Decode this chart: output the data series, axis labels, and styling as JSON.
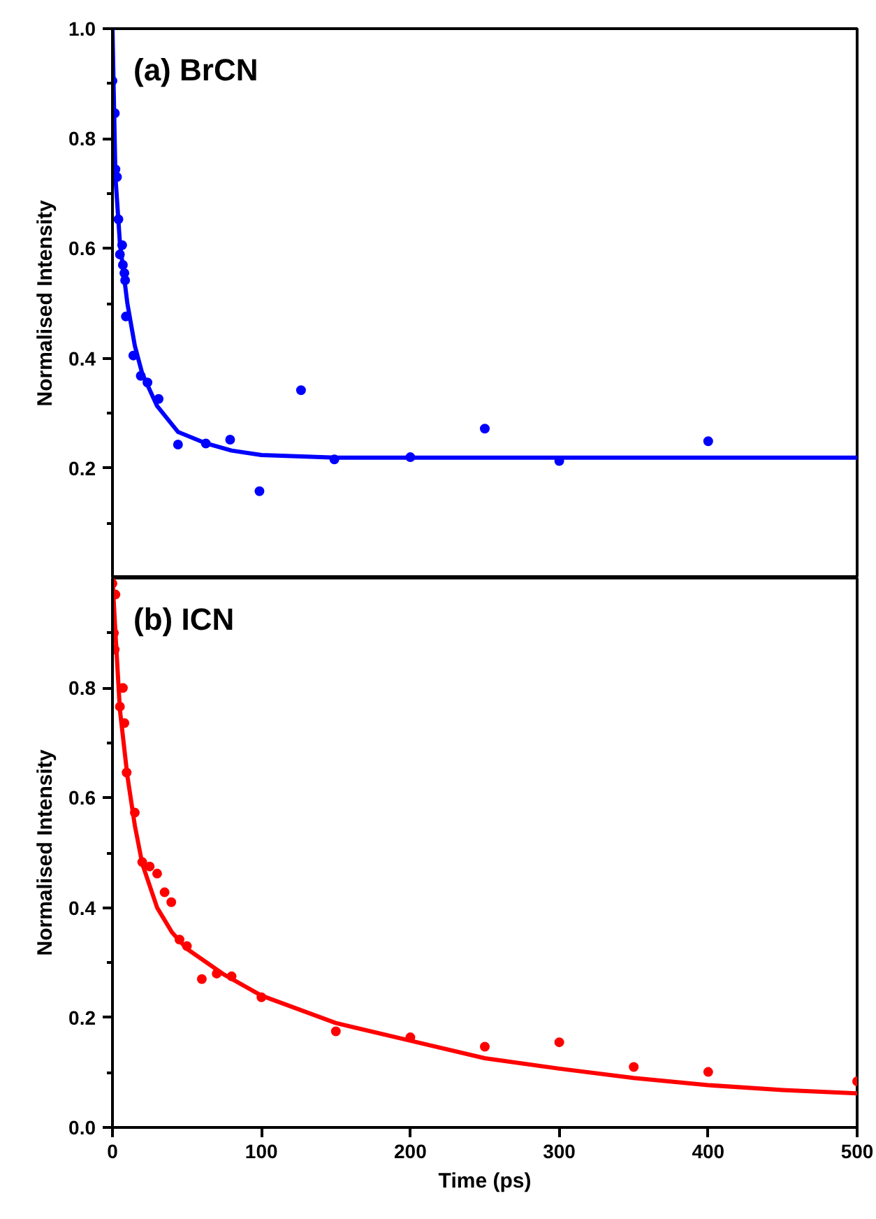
{
  "chart_data": [
    {
      "type": "scatter",
      "title": "(a) BrCN",
      "ylabel": "Normalised Intensity",
      "xlim": [
        0,
        500
      ],
      "ylim": [
        0,
        1.0
      ],
      "xticks": [
        0,
        100,
        200,
        300,
        400,
        500
      ],
      "yticks": [
        {
          "value": 0.1,
          "label": null
        },
        0.2,
        {
          "value": 0.3,
          "label": null
        },
        0.4,
        {
          "value": 0.5,
          "label": null
        },
        0.6,
        {
          "value": 0.7,
          "label": null
        },
        0.8,
        {
          "value": 0.9,
          "label": null
        },
        {
          "value": 1.0,
          "label": "1.0"
        }
      ],
      "tick_labels": "y",
      "grid": false,
      "series": [
        {
          "marker": "circle",
          "color": "#0000ff",
          "x": [
            0,
            1.6,
            2,
            3,
            4,
            5,
            6.5,
            7,
            8,
            8.5,
            9,
            14,
            19,
            23.5,
            31,
            44,
            62.7,
            79,
            98.7,
            126.6,
            149,
            200,
            250,
            300,
            400
          ],
          "values": [
            0.905,
            0.846,
            0.744,
            0.73,
            0.653,
            0.589,
            0.606,
            0.57,
            0.555,
            0.542,
            0.476,
            0.405,
            0.368,
            0.356,
            0.326,
            0.243,
            0.245,
            0.252,
            0.158,
            0.342,
            0.216,
            0.22,
            0.272,
            0.213,
            0.249
          ]
        },
        {
          "type": "line",
          "color": "#0000ff",
          "x": [
            0,
            2,
            5,
            10,
            15,
            20,
            30,
            44,
            63,
            80,
            100,
            150,
            500
          ],
          "values": [
            1.0,
            0.73,
            0.61,
            0.5,
            0.423,
            0.372,
            0.313,
            0.266,
            0.245,
            0.232,
            0.224,
            0.219,
            0.219
          ]
        }
      ]
    },
    {
      "type": "scatter",
      "title": "(b) ICN",
      "xlabel": "Time (ps)",
      "ylabel": "Normalised Intensity",
      "xlim": [
        0,
        500
      ],
      "ylim": [
        0,
        1.0
      ],
      "xticks": [
        0,
        100,
        200,
        300,
        400,
        500
      ],
      "yticks": [
        {
          "value": 0.0,
          "label": "0.0"
        },
        {
          "value": 0.1,
          "label": null
        },
        0.2,
        {
          "value": 0.3,
          "label": null
        },
        0.4,
        {
          "value": 0.5,
          "label": null
        },
        0.6,
        {
          "value": 0.7,
          "label": null
        },
        0.8,
        {
          "value": 0.9,
          "label": null
        }
      ],
      "grid": false,
      "series": [
        {
          "marker": "circle",
          "color": "#ff0000",
          "x": [
            0,
            2,
            1,
            1.5,
            7,
            5,
            8,
            9.5,
            15,
            20,
            25,
            30,
            35,
            39.5,
            45,
            50,
            60,
            70,
            80,
            100,
            150,
            200,
            250,
            300,
            350,
            400,
            500
          ],
          "values": [
            0.99,
            0.97,
            0.9,
            0.87,
            0.8,
            0.766,
            0.736,
            0.646,
            0.573,
            0.483,
            0.475,
            0.462,
            0.428,
            0.41,
            0.342,
            0.33,
            0.27,
            0.28,
            0.275,
            0.237,
            0.175,
            0.164,
            0.147,
            0.155,
            0.11,
            0.101,
            0.084
          ]
        },
        {
          "type": "line",
          "color": "#ff0000",
          "x": [
            0,
            2,
            5,
            10,
            15,
            20,
            30,
            40,
            50,
            75,
            100,
            150,
            200,
            250,
            300,
            350,
            400,
            450,
            500
          ],
          "values": [
            1.0,
            0.9,
            0.76,
            0.64,
            0.55,
            0.48,
            0.4,
            0.355,
            0.325,
            0.278,
            0.24,
            0.19,
            0.158,
            0.126,
            0.107,
            0.09,
            0.077,
            0.068,
            0.062
          ]
        }
      ]
    }
  ]
}
